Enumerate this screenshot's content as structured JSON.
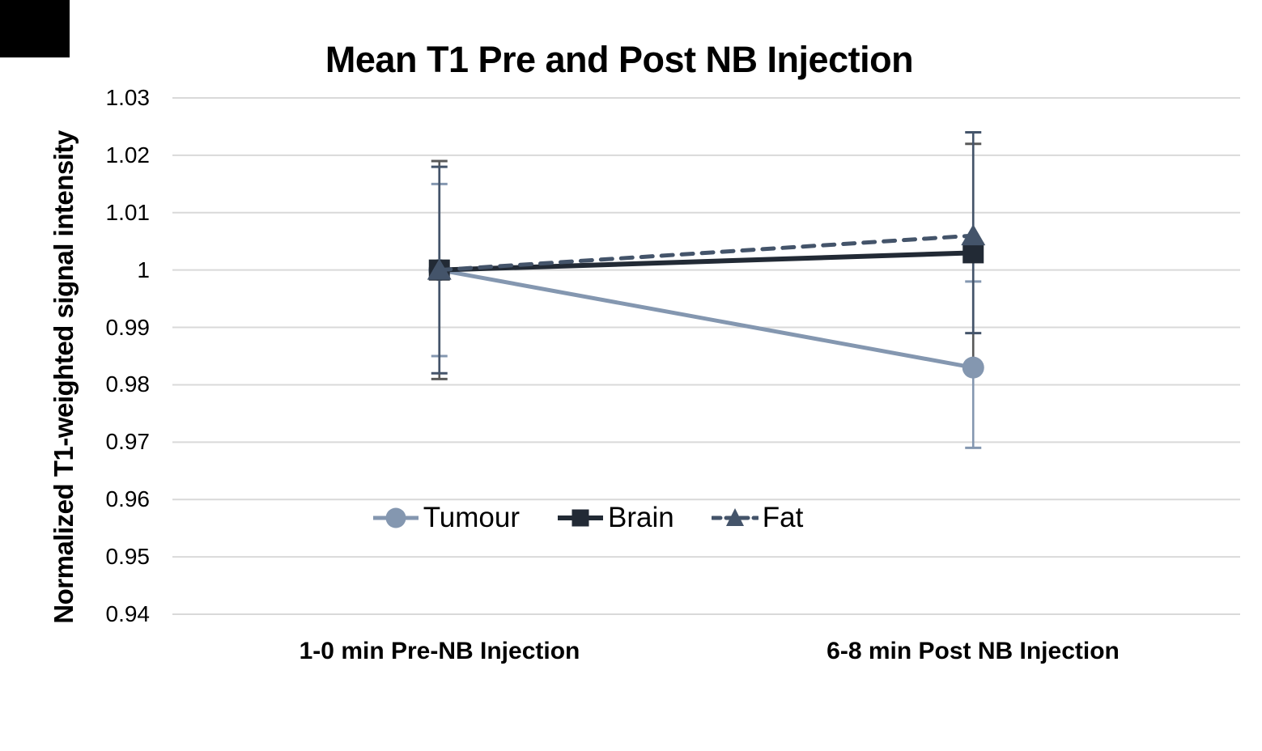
{
  "chart_data": {
    "type": "line",
    "title": "Mean T1 Pre and Post NB Injection",
    "ylabel": "Normalized T1-weighted signal intensity",
    "xlabel": "",
    "categories": [
      "1-0 min Pre-NB Injection",
      "6-8 min Post NB Injection"
    ],
    "yticks": [
      "1.03",
      "1.02",
      "1.01",
      "1",
      "0.99",
      "0.98",
      "0.97",
      "0.96",
      "0.95",
      "0.94"
    ],
    "ylim": [
      0.94,
      1.03
    ],
    "grid": true,
    "gridline_color": "#D9D9D9",
    "legend_position": "bottom-center-inside",
    "series": [
      {
        "name": "Tumour",
        "marker": "circle",
        "line_style": "solid",
        "color": "#8497B0",
        "error_color": "#8497B0",
        "values": [
          1.0,
          0.983
        ],
        "error_high": [
          1.015,
          0.998
        ],
        "error_low": [
          0.985,
          0.969
        ],
        "error_low_caps": [
          true,
          true
        ]
      },
      {
        "name": "Brain",
        "marker": "square",
        "line_style": "solid",
        "color": "#222A35",
        "error_color": "#44546A",
        "values": [
          1.0,
          1.003
        ],
        "error_high": [
          1.018,
          1.024
        ],
        "error_low": [
          0.982,
          0.989
        ],
        "error_low_caps": [
          true,
          true
        ]
      },
      {
        "name": "Fat",
        "marker": "triangle",
        "line_style": "dashed",
        "color": "#44546A",
        "error_color": "#595959",
        "values": [
          1.0,
          1.006
        ],
        "error_high": [
          1.019,
          1.022
        ],
        "error_low": [
          0.981,
          0.982
        ],
        "error_low_caps": [
          true,
          false
        ]
      }
    ]
  }
}
